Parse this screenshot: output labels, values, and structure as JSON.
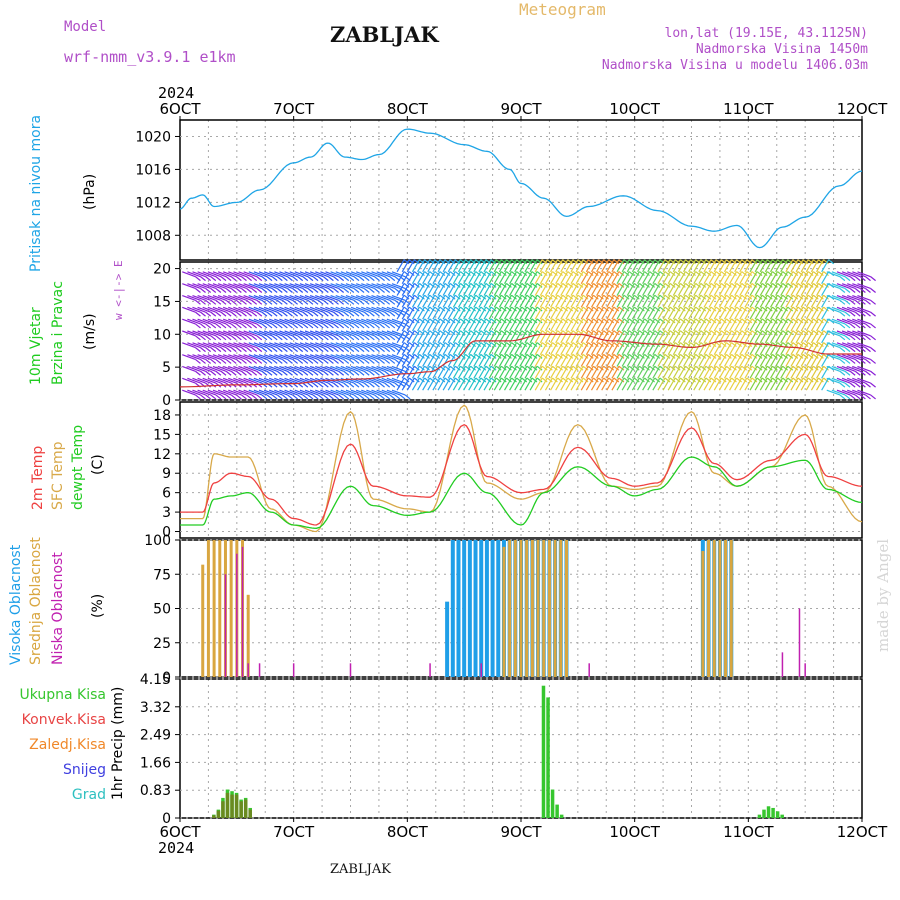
{
  "header": {
    "model_label": "Model",
    "model_name": "wrf-nmm_v3.9.1 e1km",
    "station": "ZABLJAK",
    "product": "Meteogram",
    "lonlat": "lon,lat (19.15E, 43.1125N)",
    "elevation": "Nadmorska Visina 1450m",
    "model_elevation": "Nadmorska Visina u modelu 1406.03m"
  },
  "year": "2024",
  "footer_station": "ZABLJAK",
  "credit": "made by Angel",
  "colors": {
    "pressure": "#1fa5e6",
    "temp2m": "#ef4141",
    "sfc": "#d8a94a",
    "dewpt": "#22cc22",
    "high_cloud": "#1f9fe8",
    "mid_cloud": "#d9a640",
    "low_cloud": "#c020b0",
    "total_precip": "#36c62e",
    "conv_precip": "#e84545",
    "frozen_precip": "#f0882a",
    "snow": "#4040e0",
    "hail": "#2ec0c0"
  },
  "chart_data": [
    {
      "type": "line",
      "panel": "pressure",
      "ylabel_lines": [
        "Pritisak na nivou mora",
        "(hPa)"
      ],
      "x_ticks": [
        "6OCT",
        "7OCT",
        "8OCT",
        "9OCT",
        "10OCT",
        "11OCT",
        "12OCT"
      ],
      "x_range_days": [
        6,
        12
      ],
      "ylim": [
        1005,
        1022
      ],
      "y_ticks": [
        "1008",
        "1012",
        "1016",
        "1020"
      ],
      "series": [
        {
          "x": [
            6.0,
            6.1,
            6.2,
            6.3,
            6.5,
            6.7,
            7.0,
            7.15,
            7.3,
            7.45,
            7.6,
            7.75,
            8.0,
            8.2,
            8.5,
            8.7,
            8.9,
            9.0,
            9.2,
            9.4,
            9.6,
            9.9,
            10.2,
            10.5,
            10.7,
            10.9,
            11.1,
            11.3,
            11.5,
            11.8,
            12.0
          ],
          "y": [
            1011.2,
            1012.5,
            1012.9,
            1011.5,
            1012.0,
            1013.5,
            1016.8,
            1017.5,
            1019.2,
            1017.5,
            1017.2,
            1017.8,
            1020.9,
            1020.4,
            1019.0,
            1018.2,
            1016.0,
            1014.3,
            1012.5,
            1010.3,
            1011.5,
            1012.8,
            1011.0,
            1009.1,
            1008.5,
            1009.2,
            1006.5,
            1009.0,
            1010.2,
            1014.0,
            1015.8
          ]
        }
      ]
    },
    {
      "type": "line",
      "panel": "wind",
      "ylabel_lines": [
        "10m Vjetar",
        "Brzina i Pravac",
        "(m/s)"
      ],
      "legend_compass": "w <-|-> E",
      "ylim": [
        0,
        21
      ],
      "y_ticks": [
        "0",
        "5",
        "10",
        "15",
        "20"
      ],
      "series": [
        {
          "x": [
            6.0,
            6.5,
            7.0,
            7.3,
            7.6,
            8.0,
            8.2,
            8.4,
            8.6,
            8.9,
            9.2,
            9.5,
            9.8,
            10.2,
            10.5,
            10.8,
            11.1,
            11.4,
            11.7,
            12.0
          ],
          "y": [
            2,
            2.3,
            2.5,
            3,
            3.2,
            4,
            4.3,
            6,
            9,
            9,
            10,
            10,
            9,
            8.5,
            8,
            9,
            8.5,
            8,
            7,
            7
          ]
        }
      ]
    },
    {
      "type": "line",
      "panel": "temperature",
      "ylabel_lines": [
        "2m Temp",
        "SFC Temp",
        "dewpt Temp",
        "(C)"
      ],
      "ylim": [
        -1,
        20
      ],
      "y_ticks": [
        "0",
        "3",
        "6",
        "9",
        "12",
        "15",
        "18"
      ],
      "series": [
        {
          "name": "2m Temp",
          "x": [
            6.0,
            6.2,
            6.3,
            6.45,
            6.6,
            6.8,
            7.0,
            7.2,
            7.5,
            7.7,
            8.0,
            8.2,
            8.5,
            8.7,
            9.0,
            9.2,
            9.5,
            9.8,
            10.0,
            10.2,
            10.5,
            10.7,
            10.9,
            11.2,
            11.5,
            11.7,
            12.0
          ],
          "y": [
            3,
            3,
            7.5,
            9,
            8.5,
            5,
            2,
            1,
            13.5,
            7,
            5.5,
            5.3,
            16.5,
            8.5,
            6,
            6.5,
            13,
            8.2,
            7,
            7.5,
            16,
            10.5,
            8,
            11,
            15,
            8.5,
            7
          ]
        },
        {
          "name": "SFC Temp",
          "x": [
            6.0,
            6.2,
            6.3,
            6.45,
            6.6,
            6.8,
            7.0,
            7.2,
            7.5,
            7.7,
            8.0,
            8.2,
            8.5,
            8.7,
            9.0,
            9.2,
            9.5,
            9.8,
            10.0,
            10.2,
            10.5,
            10.7,
            10.9,
            11.2,
            11.5,
            11.7,
            12.0
          ],
          "y": [
            2,
            2,
            12,
            11.5,
            11.5,
            3.5,
            1,
            0,
            18.5,
            5,
            3.5,
            3,
            19.5,
            7.5,
            5,
            6,
            16.5,
            7,
            6.5,
            7,
            18.5,
            9,
            7,
            10,
            18,
            7,
            1.5
          ]
        },
        {
          "name": "dewpt Temp",
          "x": [
            6.0,
            6.2,
            6.3,
            6.45,
            6.6,
            6.8,
            7.0,
            7.2,
            7.5,
            7.7,
            8.0,
            8.2,
            8.5,
            8.7,
            9.0,
            9.2,
            9.5,
            9.8,
            10.0,
            10.2,
            10.5,
            10.7,
            10.9,
            11.2,
            11.5,
            11.7,
            12.0
          ],
          "y": [
            1,
            1,
            5,
            5.5,
            6,
            3,
            1,
            0.5,
            7,
            4,
            2.5,
            3,
            9,
            6,
            1,
            6,
            10,
            7,
            5.5,
            6.5,
            11.5,
            10,
            7,
            10,
            11,
            6.5,
            4.5
          ]
        }
      ]
    },
    {
      "type": "bar",
      "panel": "cloud",
      "ylabel_lines": [
        "Visoka Oblacnost",
        "Srednja Oblacnost",
        "Niska Oblacnost",
        "(%)"
      ],
      "ylim": [
        0,
        100
      ],
      "y_ticks": [
        "0",
        "25",
        "50",
        "75",
        "100"
      ],
      "series": [
        {
          "name": "Visoka Oblacnost",
          "x": [
            8.35,
            8.4,
            8.45,
            8.5,
            8.55,
            8.6,
            8.65,
            8.7,
            8.75,
            8.8,
            8.85,
            8.9,
            8.95,
            9.0,
            9.05,
            9.1,
            9.15,
            9.2,
            9.25,
            9.3,
            9.35,
            9.4,
            10.6,
            10.65,
            10.7,
            10.75,
            10.8,
            10.85
          ],
          "values": [
            55,
            100,
            100,
            100,
            100,
            100,
            100,
            100,
            100,
            100,
            100,
            100,
            100,
            100,
            100,
            100,
            100,
            100,
            100,
            100,
            100,
            100,
            100,
            100,
            100,
            100,
            100,
            100
          ]
        },
        {
          "name": "Srednja Oblacnost",
          "x": [
            6.2,
            6.25,
            6.3,
            6.35,
            6.4,
            6.45,
            6.5,
            6.55,
            6.6,
            8.85,
            8.9,
            8.95,
            9.0,
            9.05,
            9.1,
            9.15,
            9.2,
            9.25,
            9.3,
            9.35,
            9.4,
            10.6,
            10.65,
            10.7,
            10.75,
            10.8,
            10.85
          ],
          "values": [
            82,
            100,
            100,
            100,
            100,
            100,
            100,
            100,
            60,
            95,
            100,
            100,
            100,
            100,
            100,
            100,
            100,
            100,
            100,
            100,
            100,
            92,
            100,
            100,
            100,
            100,
            100
          ]
        },
        {
          "name": "Niska Oblacnost",
          "x": [
            6.4,
            6.5,
            6.55,
            6.6,
            6.7,
            7.0,
            7.5,
            8.2,
            8.65,
            9.6,
            11.3,
            11.45,
            11.5
          ],
          "values": [
            75,
            90,
            95,
            10,
            10,
            10,
            10,
            10,
            10,
            10,
            18,
            50,
            10
          ]
        }
      ]
    },
    {
      "type": "bar",
      "panel": "precip",
      "ylabel_lines": [
        "1hr Precip (mm)"
      ],
      "legend": [
        "Ukupna Kisa",
        "Konvek.Kisa",
        "Zaledj.Kisa",
        "Snijeg",
        "Grad"
      ],
      "ylim": [
        0,
        4.15
      ],
      "y_ticks": [
        "0",
        "0.83",
        "1.66",
        "2.49",
        "3.32",
        "4.15"
      ],
      "x_ticks": [
        "6OCT",
        "7OCT",
        "8OCT",
        "9OCT",
        "10OCT",
        "11OCT",
        "12OCT"
      ],
      "series": [
        {
          "name": "Ukupna Kisa",
          "x": [
            6.3,
            6.34,
            6.38,
            6.42,
            6.46,
            6.5,
            6.54,
            6.58,
            6.62,
            9.2,
            9.24,
            9.28,
            9.32,
            9.36,
            11.1,
            11.14,
            11.18,
            11.22,
            11.26,
            11.3
          ],
          "values": [
            0.1,
            0.25,
            0.6,
            0.85,
            0.8,
            0.75,
            0.55,
            0.6,
            0.3,
            3.95,
            3.6,
            0.85,
            0.4,
            0.1,
            0.1,
            0.25,
            0.35,
            0.3,
            0.2,
            0.1
          ]
        },
        {
          "name": "Konvek.Kisa",
          "x": [
            6.3,
            6.34,
            6.38,
            6.42,
            6.46,
            6.5,
            6.54,
            6.58,
            6.62
          ],
          "values": [
            0.08,
            0.22,
            0.5,
            0.75,
            0.7,
            0.7,
            0.5,
            0.55,
            0.25
          ]
        }
      ]
    }
  ]
}
